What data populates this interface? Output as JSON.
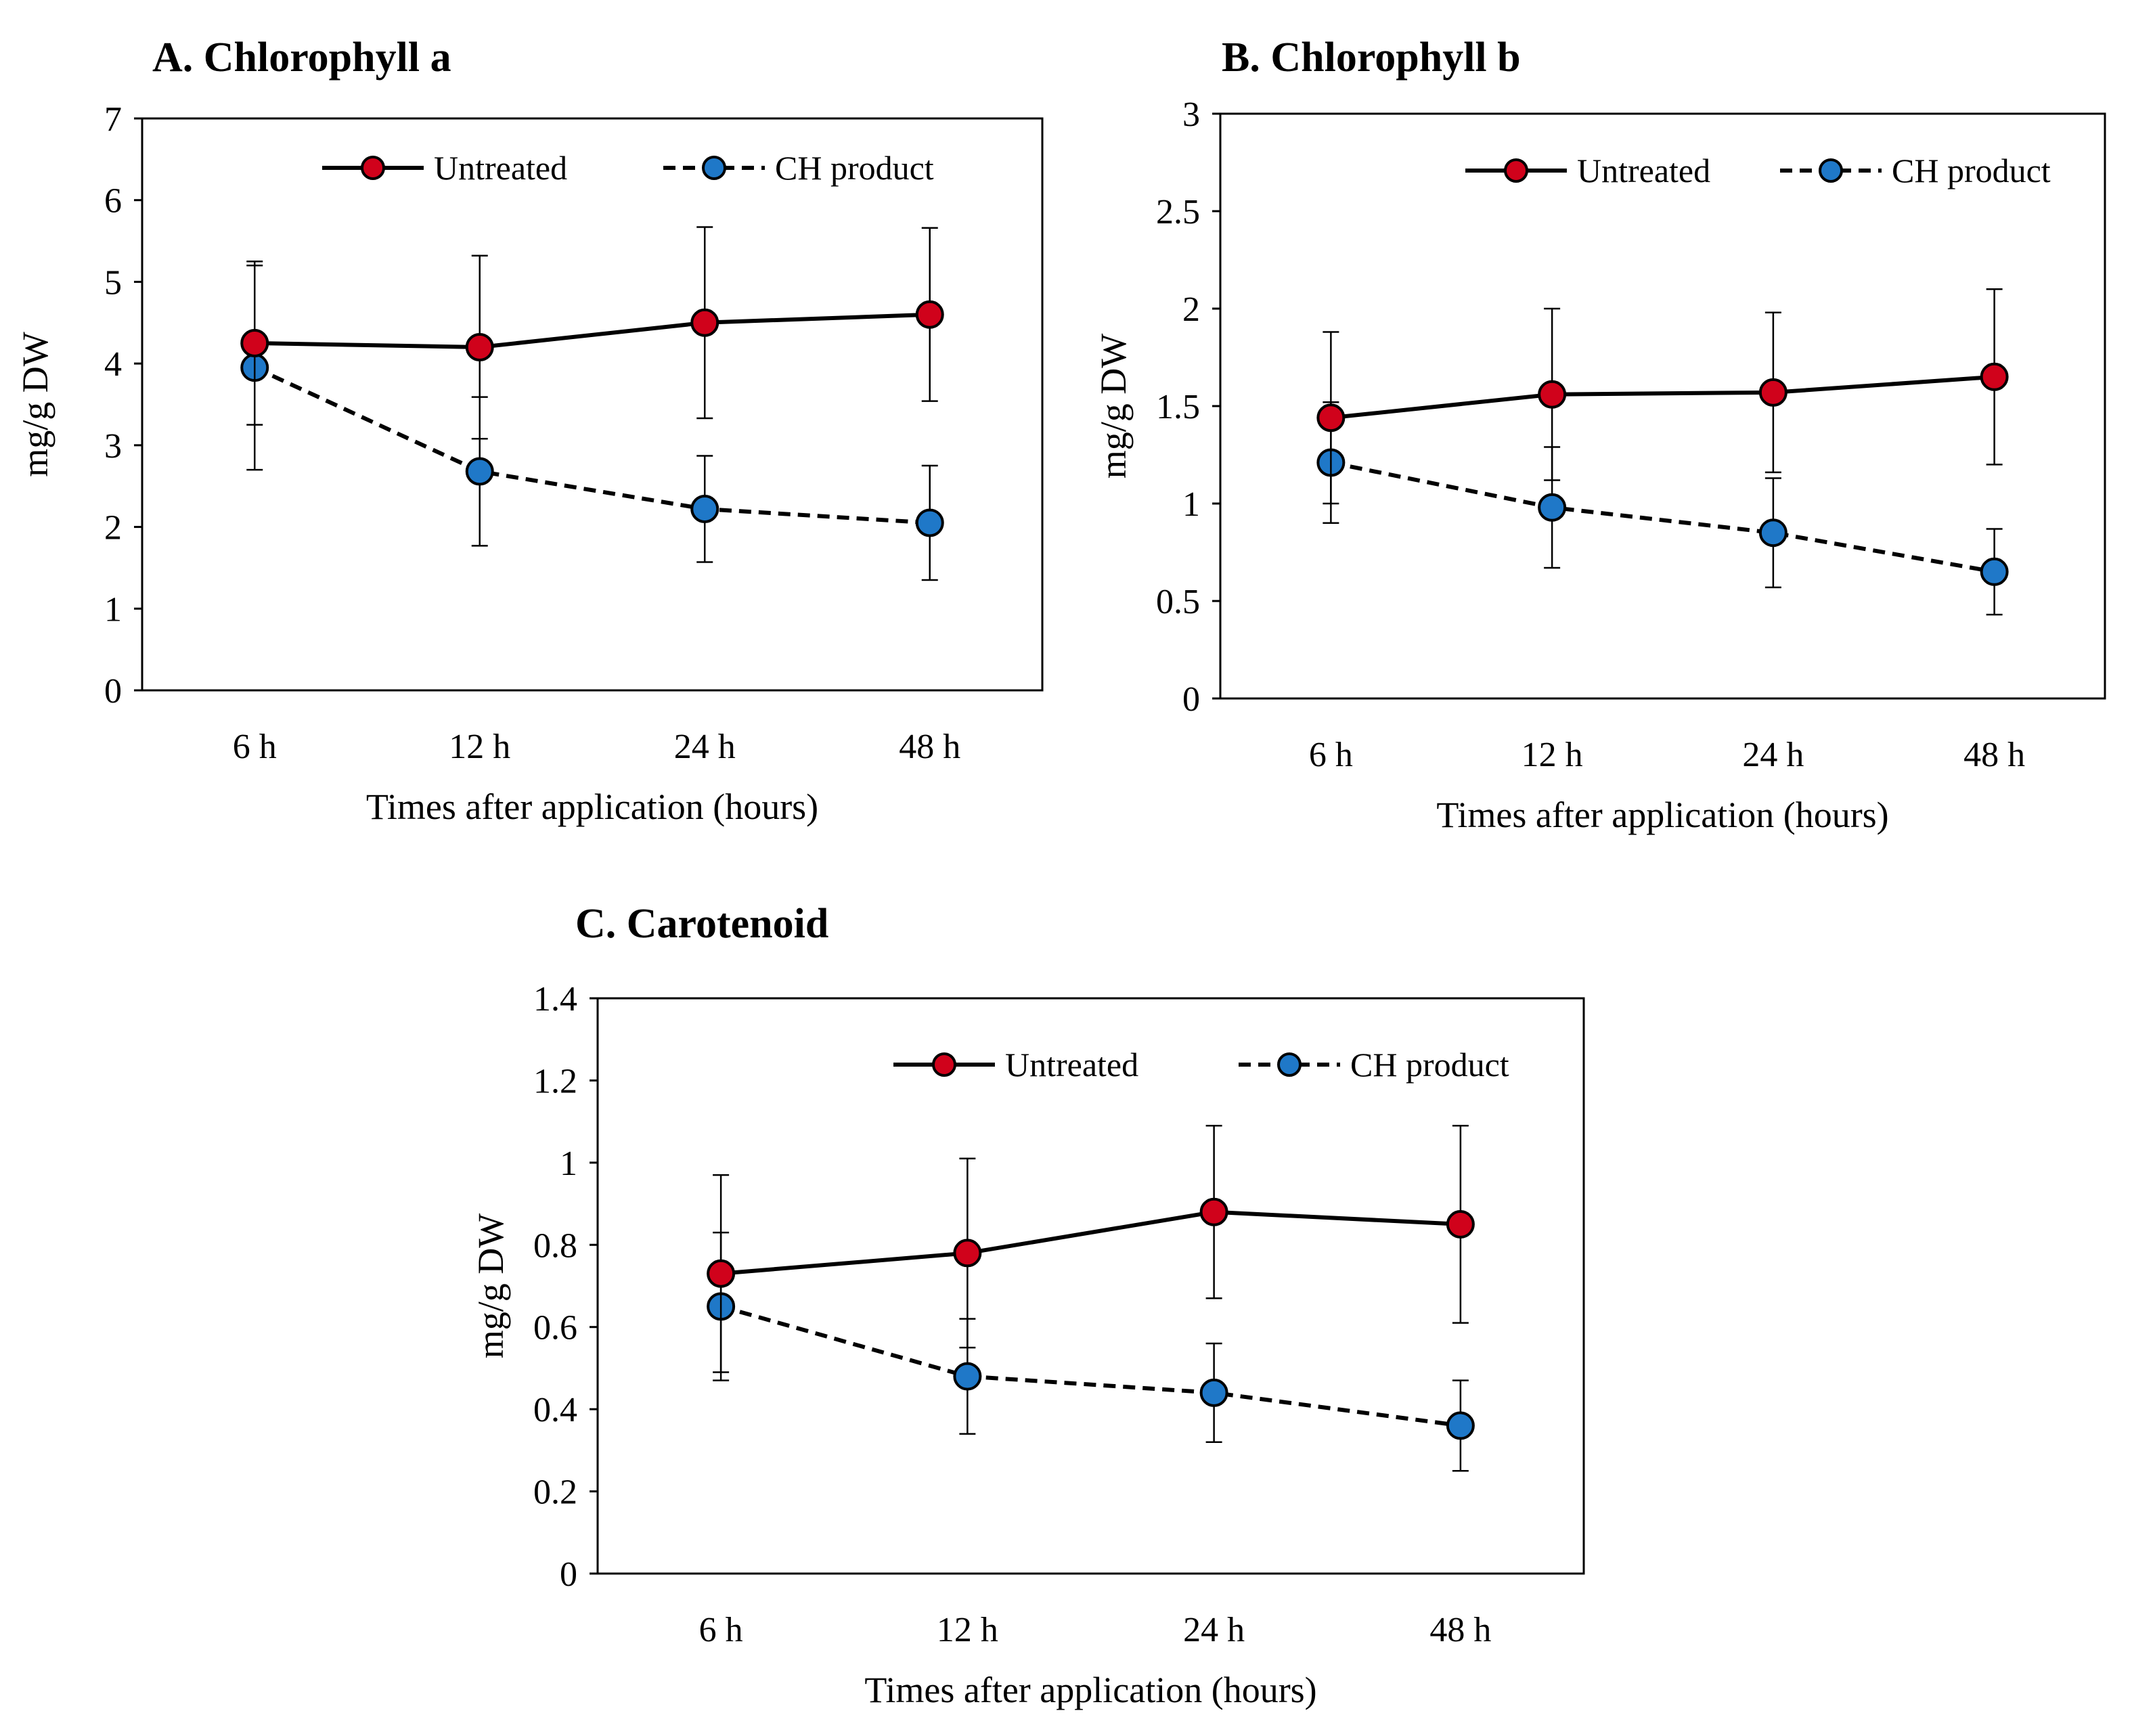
{
  "figure": {
    "series_names": [
      "Untreated",
      "CH product"
    ],
    "colors": {
      "untreated": "#d0021b",
      "ch_product": "#1f78c8",
      "axis": "#000000"
    }
  },
  "chart_data": [
    {
      "id": "a",
      "type": "line",
      "title": "A. Chlorophyll a",
      "xlabel": "Times after application (hours)",
      "ylabel": "mg/g DW",
      "categories": [
        "6 h",
        "12 h",
        "24 h",
        "48 h"
      ],
      "ylim": [
        0,
        7
      ],
      "yticks": [
        "0",
        "1",
        "2",
        "3",
        "4",
        "5",
        "6",
        "7"
      ],
      "legend": "top",
      "series": [
        {
          "name": "Untreated",
          "style": "solid",
          "values": [
            4.25,
            4.2,
            4.5,
            4.6
          ],
          "errors": [
            1.0,
            1.12,
            1.17,
            1.06
          ]
        },
        {
          "name": "CH product",
          "style": "dashed",
          "values": [
            3.95,
            2.68,
            2.22,
            2.05
          ],
          "errors": [
            1.25,
            0.91,
            0.65,
            0.7
          ]
        }
      ]
    },
    {
      "id": "b",
      "type": "line",
      "title": "B. Chlorophyll b",
      "xlabel": "Times after application (hours)",
      "ylabel": "mg/g DW",
      "categories": [
        "6 h",
        "12 h",
        "24 h",
        "48 h"
      ],
      "ylim": [
        0,
        3
      ],
      "yticks": [
        "0",
        "0.5",
        "1",
        "1.5",
        "2",
        "2.5",
        "3"
      ],
      "legend": "top",
      "series": [
        {
          "name": "Untreated",
          "style": "solid",
          "values": [
            1.44,
            1.56,
            1.57,
            1.65
          ],
          "errors": [
            0.44,
            0.44,
            0.41,
            0.45
          ]
        },
        {
          "name": "CH product",
          "style": "dashed",
          "values": [
            1.21,
            0.98,
            0.85,
            0.65
          ],
          "errors": [
            0.31,
            0.31,
            0.28,
            0.22
          ]
        }
      ]
    },
    {
      "id": "c",
      "type": "line",
      "title": "C. Carotenoid",
      "xlabel": "Times after application (hours)",
      "ylabel": "mg/g DW",
      "categories": [
        "6 h",
        "12 h",
        "24 h",
        "48 h"
      ],
      "ylim": [
        0,
        1.4
      ],
      "yticks": [
        "0",
        "0.2",
        "0.4",
        "0.6",
        "0.8",
        "1",
        "1.2",
        "1.4"
      ],
      "legend": "top-right",
      "series": [
        {
          "name": "Untreated",
          "style": "solid",
          "values": [
            0.73,
            0.78,
            0.88,
            0.85
          ],
          "errors": [
            0.24,
            0.23,
            0.21,
            0.24
          ]
        },
        {
          "name": "CH product",
          "style": "dashed",
          "values": [
            0.65,
            0.48,
            0.44,
            0.36
          ],
          "errors": [
            0.18,
            0.14,
            0.12,
            0.11
          ]
        }
      ]
    }
  ]
}
